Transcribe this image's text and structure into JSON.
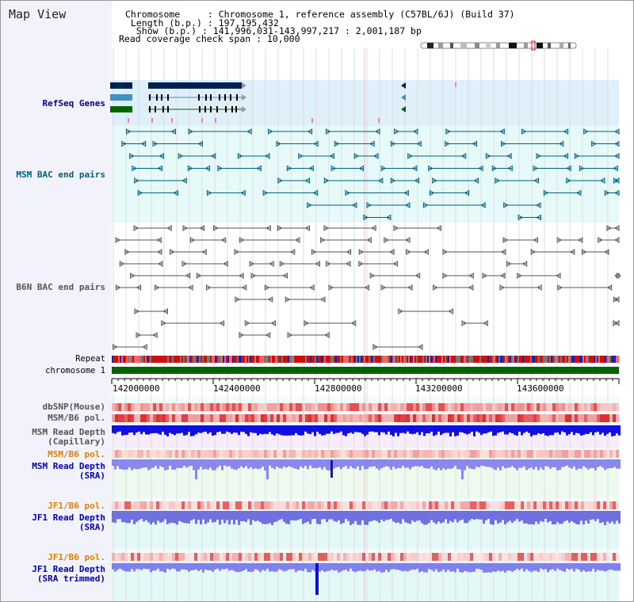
{
  "app": {
    "view_title": "Map View"
  },
  "header": {
    "rows": [
      {
        "key": "Chromosome",
        "sep": "     : ",
        "value": "Chromosome 1, reference assembly (C57BL/6J) (Build 37)"
      },
      {
        "key": " Length (b.p.)",
        "sep": " : ",
        "value": "197,195,432"
      },
      {
        "key": "  Show (b.p.)",
        "sep": " : ",
        "value": "141,996,031-143,997,217 : 2,001,187 bp"
      },
      {
        "key": "Read coverage check span",
        "sep": " : ",
        "value": "10,000"
      }
    ]
  },
  "tracks": {
    "refseq_label": "RefSeq Genes",
    "msm_bac_label": "MSM BAC end pairs",
    "b6n_bac_label": "B6N BAC end pairs",
    "repeat_label": "Repeat",
    "chromosome_label": "chromosome 1",
    "dbsnp_label": "dbSNP(Mouse)",
    "msm_pol_label": "MSM/B6 pol.",
    "msm_depth_cap_label_1": "MSM Read Depth",
    "msm_depth_cap_label_2": "(Capillary)",
    "msm_pol2_label": "MSM/B6 pol.",
    "msm_depth_sra_label_1": "MSM Read Depth",
    "msm_depth_sra_label_2": "(SRA)",
    "jf1_pol_label": "JF1/B6 pol.",
    "jf1_depth_sra_label_1": "JF1 Read Depth",
    "jf1_depth_sra_label_2": "(SRA)",
    "jf1_pol2_label": "JF1/B6 pol.",
    "jf1_depth_trim_label_1": "JF1 Read Depth",
    "jf1_depth_trim_label_2": "(SRA trimmed)"
  },
  "axis": {
    "ticks": [
      "142000000",
      "142400000",
      "142800000",
      "143200000",
      "143600000"
    ]
  },
  "colors": {
    "refseq": "#000080",
    "msm_bac": "#006080",
    "b6n_bac": "#555555",
    "orange": "#e08000",
    "blue": "#0000c0",
    "chromosome": "#006400"
  }
}
